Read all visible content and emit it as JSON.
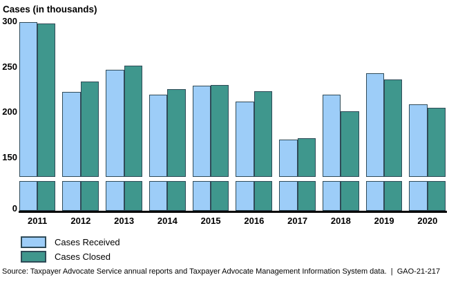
{
  "chart_data": {
    "type": "bar",
    "title": "Cases (in thousands)",
    "categories": [
      "2011",
      "2012",
      "2013",
      "2014",
      "2015",
      "2016",
      "2017",
      "2018",
      "2019",
      "2020"
    ],
    "series": [
      {
        "name": "Cases Received",
        "color": "#9dcdf8",
        "values": [
          299,
          222,
          247,
          219,
          229,
          212,
          170,
          219,
          243,
          209
        ]
      },
      {
        "name": "Cases Closed",
        "color": "#3f978d",
        "values": [
          298,
          234,
          251,
          225,
          230,
          223,
          171,
          201,
          236,
          205
        ]
      }
    ],
    "ylabel": "Cases (in thousands)",
    "yticks": [
      300,
      250,
      200,
      150,
      0
    ],
    "ylim": [
      0,
      300
    ],
    "axis_break": {
      "between": [
        0,
        150
      ],
      "style": "white-gap"
    },
    "grid": false,
    "legend_position": "below-chart-left",
    "bar_border_color": "#2f4a57",
    "baseline_color": "#000000"
  },
  "source_line": "Source: Taxpayer Advocate Service annual reports and Taxpayer Advocate Management Information System data.  |  GAO-21-217"
}
